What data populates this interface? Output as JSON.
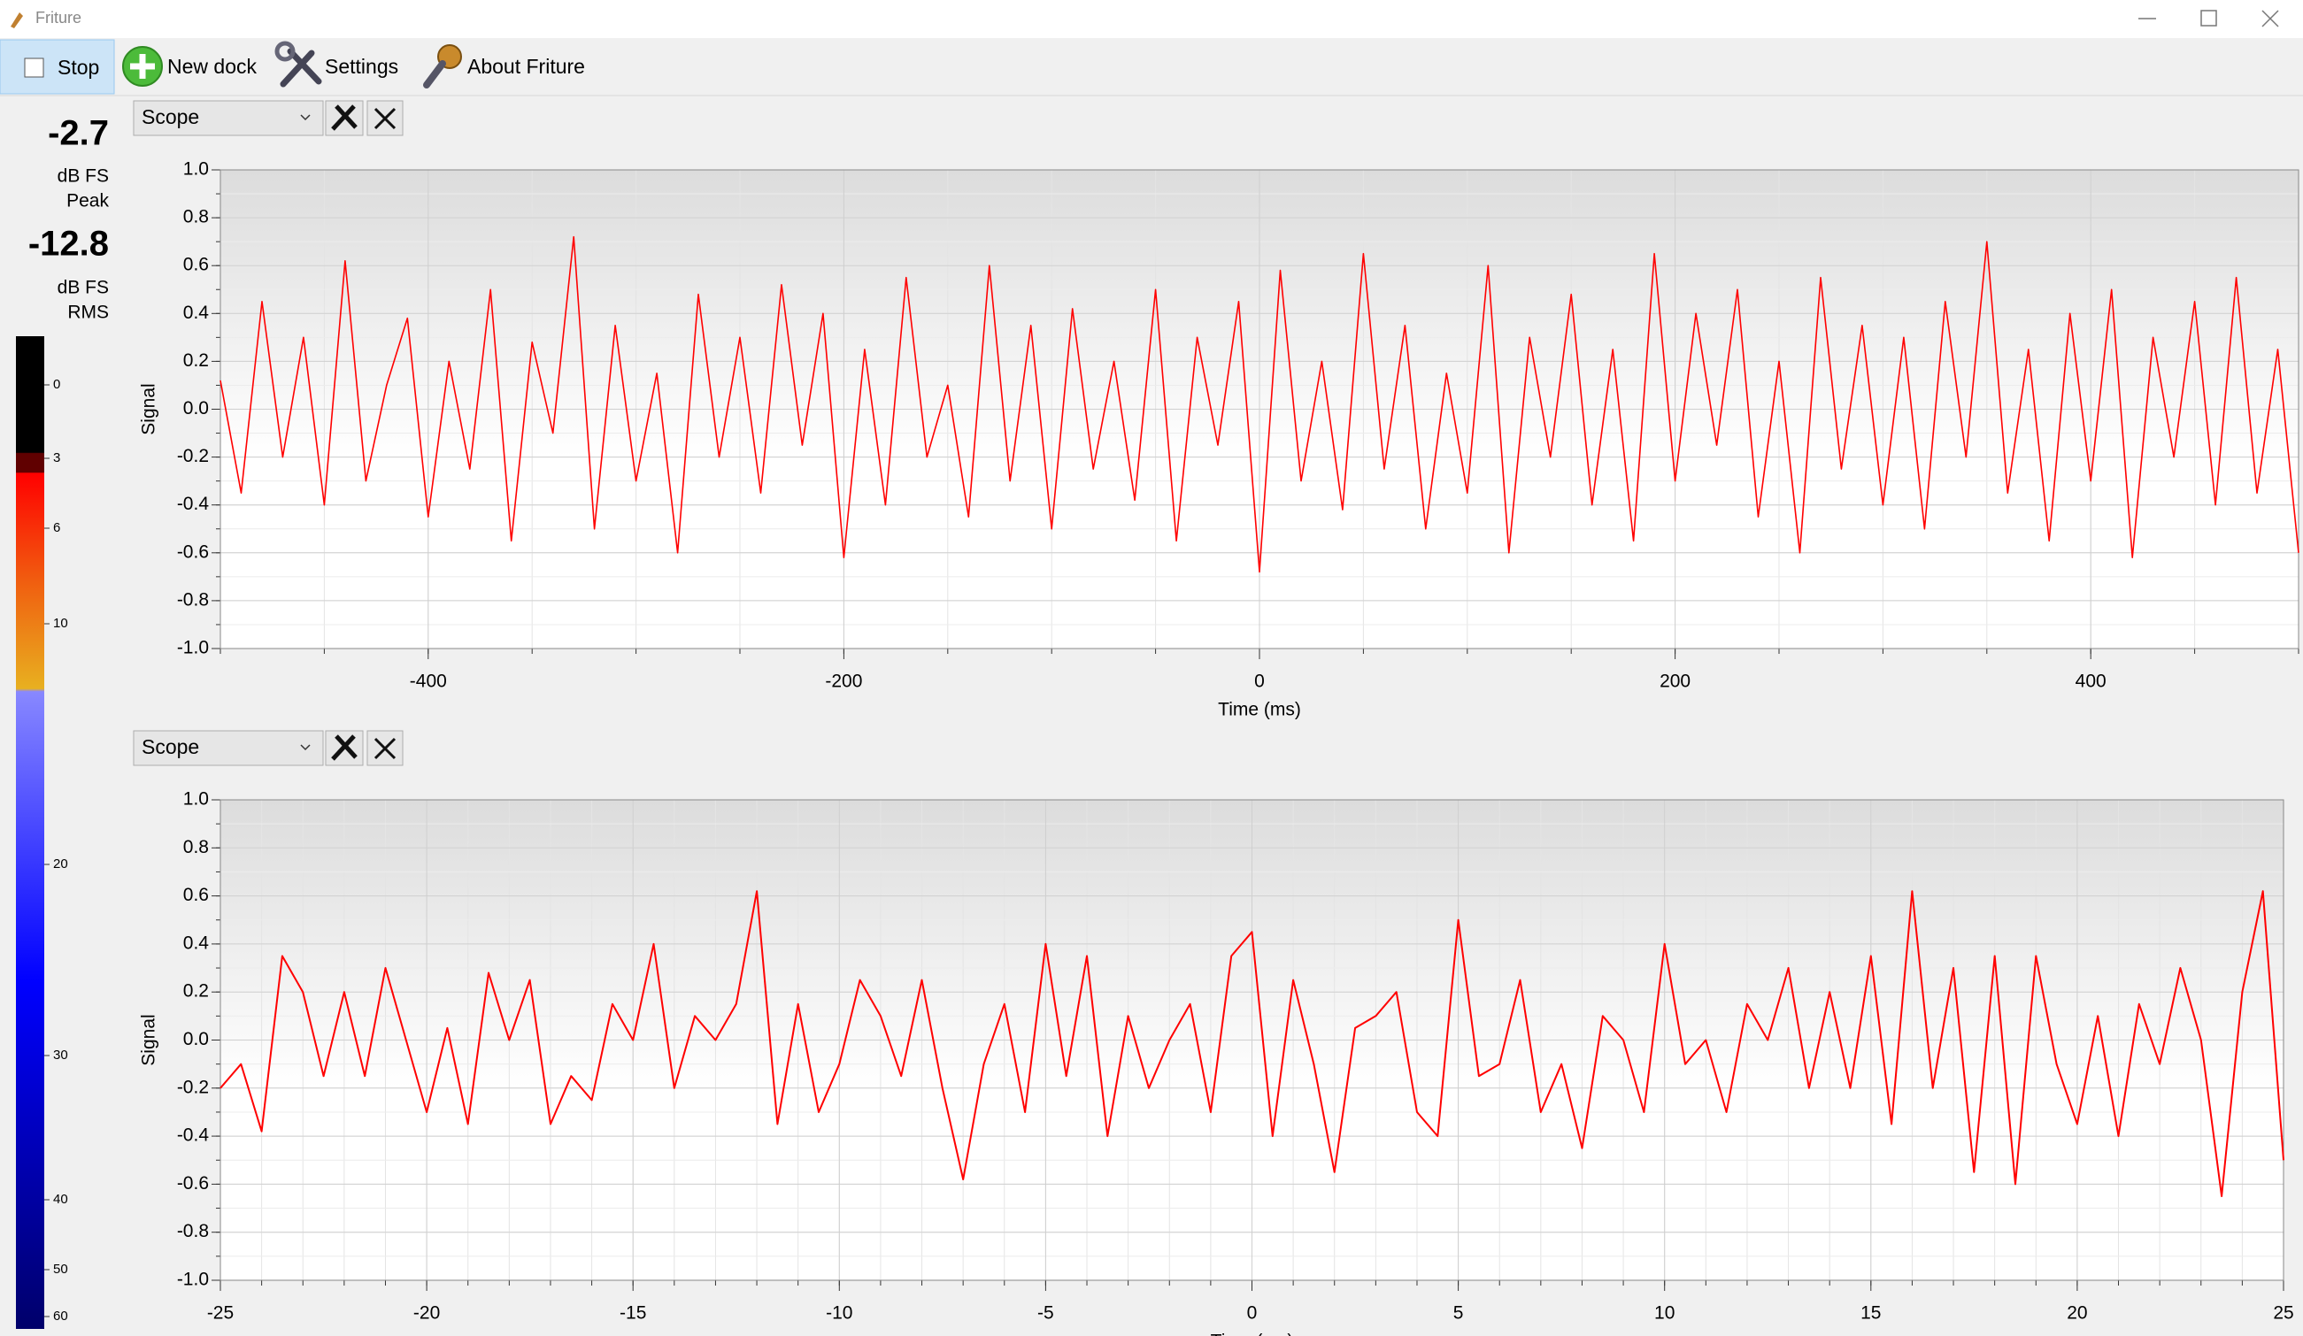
{
  "window_title": "Friture",
  "toolbar": {
    "stop": "Stop",
    "new_dock": "New dock",
    "settings": "Settings",
    "about": "About Friture"
  },
  "levels": {
    "peak_value": -2.7,
    "peak_unit": "dB FS",
    "peak_label": "Peak",
    "rms_value": -12.8,
    "rms_unit": "dB FS",
    "rms_label": "RMS",
    "scale": [
      0,
      3,
      6,
      10,
      20,
      30,
      40,
      50,
      60
    ]
  },
  "docks": [
    {
      "widget": "Scope"
    },
    {
      "widget": "Scope"
    }
  ],
  "chart_data": [
    {
      "type": "line",
      "ylabel": "Signal",
      "xlabel": "Time (ms)",
      "color": "#ff0000",
      "grid": true,
      "xlim": [
        -500,
        500
      ],
      "ylim": [
        -1,
        1
      ],
      "xticks": [
        -400,
        -200,
        0,
        200,
        400
      ],
      "yticks": [
        {
          "value": -1,
          "label": "-1.0"
        },
        -0.8,
        -0.6,
        -0.4,
        -0.2,
        {
          "value": 0,
          "label": "0.0"
        },
        0.2,
        0.4,
        0.6,
        0.8,
        {
          "value": 1,
          "label": "1.0"
        }
      ],
      "x": [
        -500,
        -490,
        -480,
        -470,
        -460,
        -450,
        -440,
        -430,
        -420,
        -410,
        -400,
        -390,
        -380,
        -370,
        -360,
        -350,
        -340,
        -330,
        -320,
        -310,
        -300,
        -290,
        -280,
        -270,
        -260,
        -250,
        -240,
        -230,
        -220,
        -210,
        -200,
        -190,
        -180,
        -170,
        -160,
        -150,
        -140,
        -130,
        -120,
        -110,
        -100,
        -90,
        -80,
        -70,
        -60,
        -50,
        -40,
        -30,
        -20,
        -10,
        0,
        10,
        20,
        30,
        40,
        50,
        60,
        70,
        80,
        90,
        100,
        110,
        120,
        130,
        140,
        150,
        160,
        170,
        180,
        190,
        200,
        210,
        220,
        230,
        240,
        250,
        260,
        270,
        280,
        290,
        300,
        310,
        320,
        330,
        340,
        350,
        360,
        370,
        380,
        390,
        400,
        410,
        420,
        430,
        440,
        450,
        460,
        470,
        480,
        490,
        500
      ],
      "values": [
        0.12,
        -0.35,
        0.45,
        -0.2,
        0.3,
        -0.4,
        0.62,
        -0.3,
        0.1,
        0.38,
        -0.45,
        0.2,
        -0.25,
        0.5,
        -0.55,
        0.28,
        -0.1,
        0.72,
        -0.5,
        0.35,
        -0.3,
        0.15,
        -0.6,
        0.48,
        -0.2,
        0.3,
        -0.35,
        0.52,
        -0.15,
        0.4,
        -0.62,
        0.25,
        -0.4,
        0.55,
        -0.2,
        0.1,
        -0.45,
        0.6,
        -0.3,
        0.35,
        -0.5,
        0.42,
        -0.25,
        0.2,
        -0.38,
        0.5,
        -0.55,
        0.3,
        -0.15,
        0.45,
        -0.68,
        0.58,
        -0.3,
        0.2,
        -0.42,
        0.65,
        -0.25,
        0.35,
        -0.5,
        0.15,
        -0.35,
        0.6,
        -0.6,
        0.3,
        -0.2,
        0.48,
        -0.4,
        0.25,
        -0.55,
        0.65,
        -0.3,
        0.4,
        -0.15,
        0.5,
        -0.45,
        0.2,
        -0.6,
        0.55,
        -0.25,
        0.35,
        -0.4,
        0.3,
        -0.5,
        0.45,
        -0.2,
        0.7,
        -0.35,
        0.25,
        -0.55,
        0.4,
        -0.3,
        0.5,
        -0.62,
        0.3,
        -0.2,
        0.45,
        -0.4,
        0.55,
        -0.35,
        0.25,
        -0.6
      ]
    },
    {
      "type": "line",
      "ylabel": "Signal",
      "xlabel": "Time (ms)",
      "color": "#ff0000",
      "grid": true,
      "xlim": [
        -25,
        25
      ],
      "ylim": [
        -1,
        1
      ],
      "xticks": [
        -25,
        -20,
        -15,
        -10,
        -5,
        0,
        5,
        10,
        15,
        20,
        25
      ],
      "yticks": [
        {
          "value": -1,
          "label": "-1.0"
        },
        -0.8,
        -0.6,
        -0.4,
        -0.2,
        {
          "value": 0,
          "label": "0.0"
        },
        0.2,
        0.4,
        0.6,
        0.8,
        {
          "value": 1,
          "label": "1.0"
        }
      ],
      "x": [
        -25,
        -24.5,
        -24,
        -23.5,
        -23,
        -22.5,
        -22,
        -21.5,
        -21,
        -20.5,
        -20,
        -19.5,
        -19,
        -18.5,
        -18,
        -17.5,
        -17,
        -16.5,
        -16,
        -15.5,
        -15,
        -14.5,
        -14,
        -13.5,
        -13,
        -12.5,
        -12,
        -11.5,
        -11,
        -10.5,
        -10,
        -9.5,
        -9,
        -8.5,
        -8,
        -7.5,
        -7,
        -6.5,
        -6,
        -5.5,
        -5,
        -4.5,
        -4,
        -3.5,
        -3,
        -2.5,
        -2,
        -1.5,
        -1,
        -0.5,
        0,
        0.5,
        1,
        1.5,
        2,
        2.5,
        3,
        3.5,
        4,
        4.5,
        5,
        5.5,
        6,
        6.5,
        7,
        7.5,
        8,
        8.5,
        9,
        9.5,
        10,
        10.5,
        11,
        11.5,
        12,
        12.5,
        13,
        13.5,
        14,
        14.5,
        15,
        15.5,
        16,
        16.5,
        17,
        17.5,
        18,
        18.5,
        19,
        19.5,
        20,
        20.5,
        21,
        21.5,
        22,
        22.5,
        23,
        23.5,
        24,
        24.5,
        25
      ],
      "values": [
        -0.2,
        -0.1,
        -0.38,
        0.35,
        0.2,
        -0.15,
        0.2,
        -0.15,
        0.3,
        0.0,
        -0.3,
        0.05,
        -0.35,
        0.28,
        0.0,
        0.25,
        -0.35,
        -0.15,
        -0.25,
        0.15,
        0.0,
        0.4,
        -0.2,
        0.1,
        0.0,
        0.15,
        0.62,
        -0.35,
        0.15,
        -0.3,
        -0.1,
        0.25,
        0.1,
        -0.15,
        0.25,
        -0.2,
        -0.58,
        -0.1,
        0.15,
        -0.3,
        0.4,
        -0.15,
        0.35,
        -0.4,
        0.1,
        -0.2,
        0.0,
        0.15,
        -0.3,
        0.35,
        0.45,
        -0.4,
        0.25,
        -0.1,
        -0.55,
        0.05,
        0.1,
        0.2,
        -0.3,
        -0.4,
        0.5,
        -0.15,
        -0.1,
        0.25,
        -0.3,
        -0.1,
        -0.45,
        0.1,
        0.0,
        -0.3,
        0.4,
        -0.1,
        0.0,
        -0.3,
        0.15,
        0.0,
        0.3,
        -0.2,
        0.2,
        -0.2,
        0.35,
        -0.35,
        0.62,
        -0.2,
        0.3,
        -0.55,
        0.35,
        -0.6,
        0.35,
        -0.1,
        -0.35,
        0.1,
        -0.4,
        0.15,
        -0.1,
        0.3,
        0.0,
        -0.65,
        0.2,
        0.62,
        -0.5
      ]
    }
  ]
}
